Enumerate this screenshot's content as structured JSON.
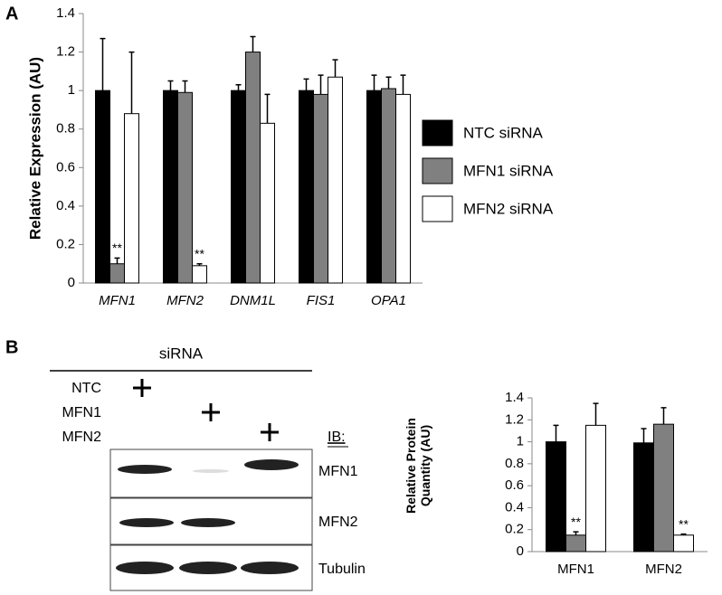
{
  "panel_labels": [
    "A",
    "B"
  ],
  "chart_data": [
    {
      "type": "bar",
      "ylabel": "Relative Expression (AU)",
      "categories": [
        "MFN1",
        "MFN2",
        "DNM1L",
        "FIS1",
        "OPA1"
      ],
      "xtick_font_style": "italic",
      "series": [
        {
          "name": "NTC siRNA",
          "color": "#000000",
          "values": [
            1,
            1,
            1,
            1,
            1
          ],
          "errors": [
            0.27,
            0.05,
            0.03,
            0.06,
            0.08
          ]
        },
        {
          "name": "MFN1 siRNA",
          "color": "#808080",
          "values": [
            0.1,
            0.99,
            1.2,
            0.98,
            1.01
          ],
          "errors": [
            0.03,
            0.06,
            0.08,
            0.1,
            0.06
          ]
        },
        {
          "name": "MFN2 siRNA",
          "color": "#ffffff",
          "values": [
            0.88,
            0.09,
            0.83,
            1.07,
            0.98
          ],
          "errors": [
            0.32,
            0.01,
            0.15,
            0.09,
            0.1
          ]
        }
      ],
      "annotations": [
        {
          "text": "**",
          "series": 1,
          "category": 0
        },
        {
          "text": "**",
          "series": 2,
          "category": 1
        }
      ],
      "ylim": [
        0,
        1.4
      ],
      "yticks": [
        0,
        0.2,
        0.4,
        0.6,
        0.8,
        1,
        1.2,
        1.4
      ],
      "legend": "right"
    },
    {
      "type": "bar",
      "ylabel": "Relative Protein Quantity (AU)",
      "categories": [
        "MFN1",
        "MFN2"
      ],
      "series": [
        {
          "color": "#000000",
          "values": [
            1,
            0.99
          ],
          "errors": [
            0.15,
            0.13
          ]
        },
        {
          "color": "#808080",
          "values": [
            0.15,
            1.16
          ],
          "errors": [
            0.03,
            0.15
          ]
        },
        {
          "color": "#ffffff",
          "values": [
            1.15,
            0.15
          ],
          "errors": [
            0.2,
            0.01
          ]
        }
      ],
      "annotations": [
        {
          "text": "**",
          "series": 1,
          "category": 0
        },
        {
          "text": "**",
          "series": 2,
          "category": 1
        }
      ],
      "ylim": [
        0,
        1.4
      ],
      "yticks": [
        0,
        0.2,
        0.4,
        0.6,
        0.8,
        1,
        1.2,
        1.4
      ]
    }
  ],
  "blot": {
    "header": "siRNA",
    "conditions": [
      "NTC",
      "MFN1",
      "MFN2"
    ],
    "ib_label": "IB:",
    "bands": [
      "MFN1",
      "MFN2",
      "Tubulin"
    ]
  }
}
